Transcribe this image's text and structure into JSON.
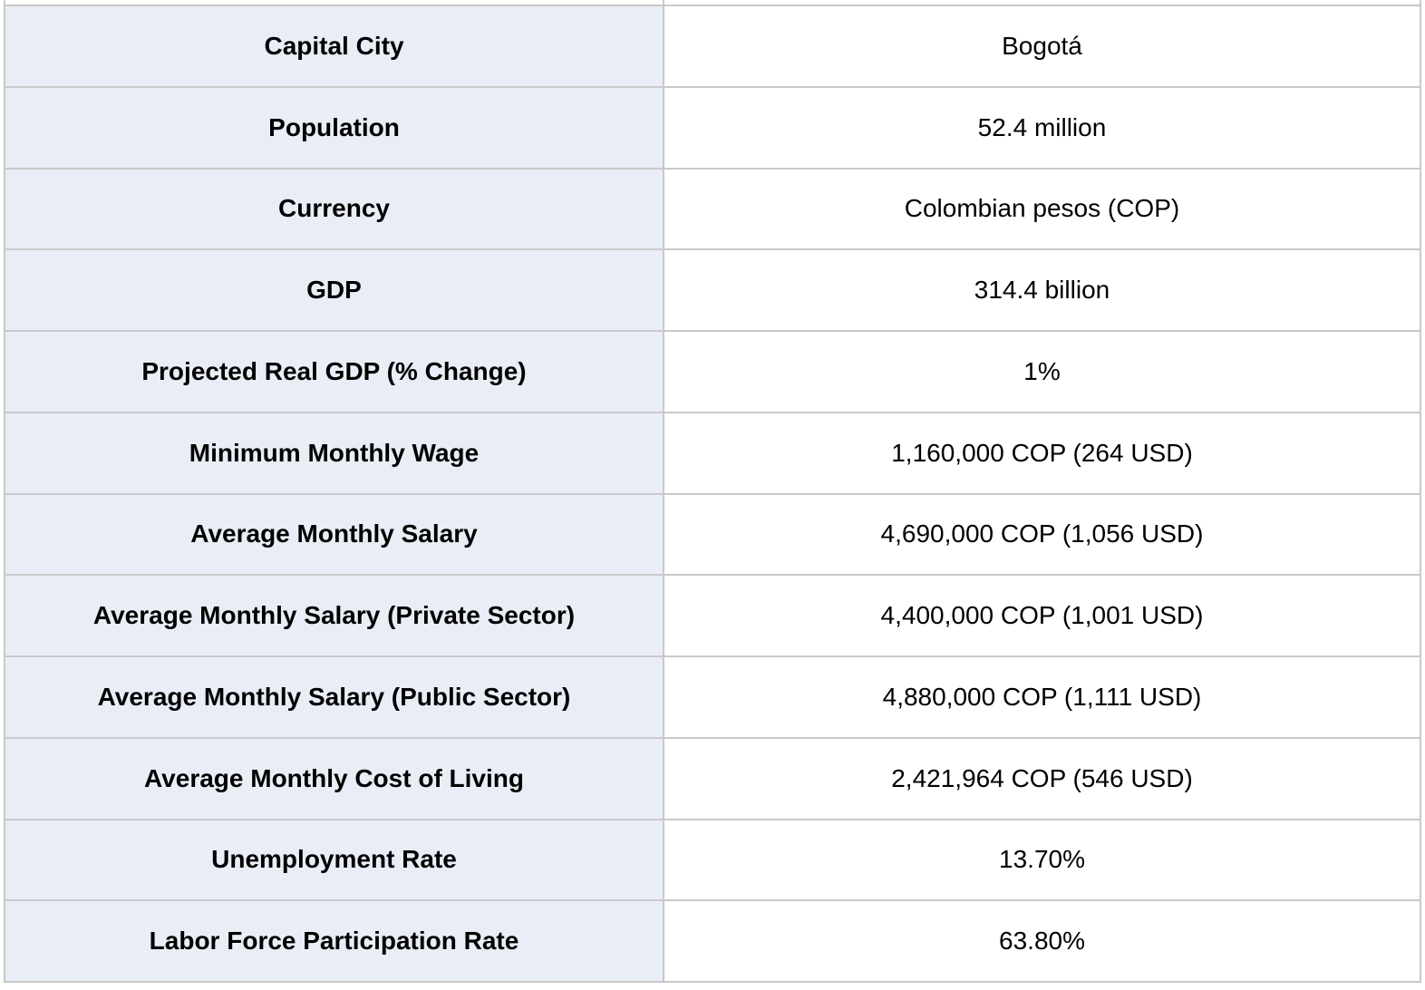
{
  "table": {
    "rows": [
      {
        "label": "Capital City",
        "value": "Bogotá"
      },
      {
        "label": "Population",
        "value": "52.4 million"
      },
      {
        "label": "Currency",
        "value": "Colombian pesos (COP)"
      },
      {
        "label": "GDP",
        "value": "314.4 billion"
      },
      {
        "label": "Projected Real GDP (% Change)",
        "value": "1%"
      },
      {
        "label": "Minimum Monthly Wage",
        "value": "1,160,000 COP (264 USD)"
      },
      {
        "label": "Average Monthly Salary",
        "value": "4,690,000 COP (1,056 USD)"
      },
      {
        "label": "Average Monthly Salary (Private Sector)",
        "value": "4,400,000 COP (1,001 USD)"
      },
      {
        "label": "Average Monthly Salary (Public Sector)",
        "value": "4,880,000 COP (1,111 USD)"
      },
      {
        "label": "Average Monthly Cost of Living",
        "value": "2,421,964 COP (546 USD)"
      },
      {
        "label": "Unemployment Rate",
        "value": "13.70%"
      },
      {
        "label": "Labor Force Participation Rate",
        "value": "63.80%"
      }
    ]
  },
  "colors": {
    "label_column_background": "#e9edf6",
    "value_column_background": "#ffffff",
    "grid_border": "#c9c9c9",
    "text": "#000000"
  }
}
